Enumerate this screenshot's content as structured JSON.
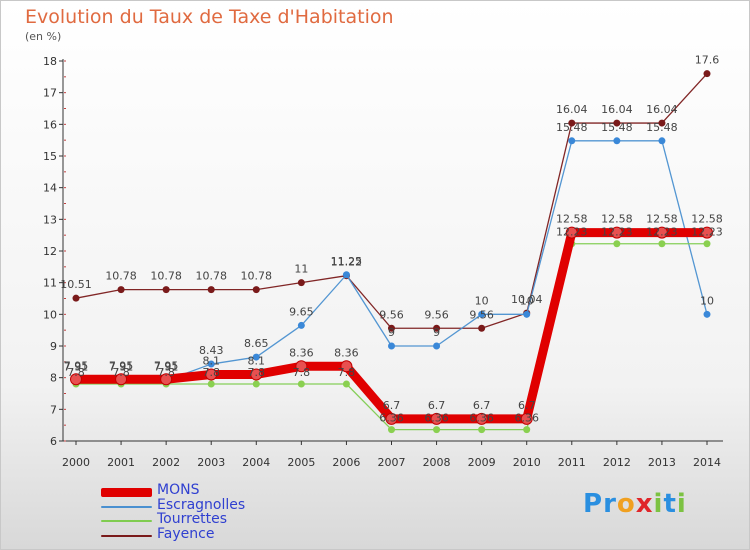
{
  "title": "Evolution du Taux de Taxe d'Habitation",
  "unit_label": "(en %)",
  "logo": {
    "letters": [
      "P",
      "r",
      "o",
      "x",
      "i",
      "t",
      "i"
    ],
    "colors": [
      "#2a8fe0",
      "#2a8fe0",
      "#f0a020",
      "#e0262a",
      "#7cc242",
      "#2a8fe0",
      "#7cc242"
    ]
  },
  "chart_data": {
    "type": "line",
    "title": "Evolution du Taux de Taxe d'Habitation",
    "ylabel": "(en %)",
    "xlabel": "",
    "ylim": [
      6,
      18
    ],
    "yticks": [
      6,
      7,
      8,
      9,
      10,
      11,
      12,
      13,
      14,
      15,
      16,
      17,
      18
    ],
    "grid": false,
    "legend_position": "bottom-left",
    "x": [
      "2000",
      "2001",
      "2002",
      "2003",
      "2004",
      "2005",
      "2006",
      "2007",
      "2008",
      "2009",
      "2010",
      "2011",
      "2012",
      "2013",
      "2014"
    ],
    "series": [
      {
        "name": "MONS",
        "color": "#e00000",
        "values": [
          7.95,
          7.95,
          7.95,
          8.1,
          8.1,
          8.36,
          8.36,
          6.7,
          6.7,
          6.7,
          6.7,
          12.58,
          12.58,
          12.58,
          12.58
        ]
      },
      {
        "name": "Escragnolles",
        "color": "#4a90d0",
        "values": [
          7.91,
          7.91,
          7.91,
          8.43,
          8.65,
          9.65,
          11.25,
          9,
          9,
          10,
          10,
          15.48,
          15.48,
          15.48,
          10
        ]
      },
      {
        "name": "Tourrettes",
        "color": "#80cc50",
        "values": [
          7.8,
          7.8,
          7.8,
          7.8,
          7.8,
          7.8,
          7.8,
          6.36,
          6.36,
          6.36,
          6.36,
          12.23,
          12.23,
          12.23,
          12.23
        ]
      },
      {
        "name": "Fayence",
        "color": "#7a1a1a",
        "values": [
          10.51,
          10.78,
          10.78,
          10.78,
          10.78,
          11,
          11.22,
          9.56,
          9.56,
          9.56,
          10.04,
          16.04,
          16.04,
          16.04,
          17.6
        ]
      }
    ],
    "point_labels": {
      "MONS": [
        "7.95",
        "7.95",
        "7.95",
        "8.1",
        "8.1",
        "8.36",
        "8.36",
        "6.7",
        "6.7",
        "6.7",
        "6.7",
        "12.58",
        "12.58",
        "12.58",
        "12.58"
      ],
      "Escragnolles": [
        "7.91",
        "7.91",
        "7.91",
        "8.43",
        "8.65",
        "9.65",
        "11.25",
        "9",
        "9",
        "10",
        "10",
        "15.48",
        "15.48",
        "15.48",
        "10"
      ],
      "Tourrettes": [
        "7.8",
        "7.8",
        "7.8",
        "7.8",
        "7.8",
        "7.8",
        "7.8",
        "6.36",
        "6.36",
        "6.36",
        "6.36",
        "12.23",
        "12.23",
        "12.23",
        "12.23"
      ],
      "Fayence": [
        "10.51",
        "10.78",
        "10.78",
        "10.78",
        "10.78",
        "11",
        "11.22",
        "9.56",
        "9.56",
        "9.56",
        "10.04",
        "16.04",
        "16.04",
        "16.04",
        "17.6"
      ]
    }
  }
}
